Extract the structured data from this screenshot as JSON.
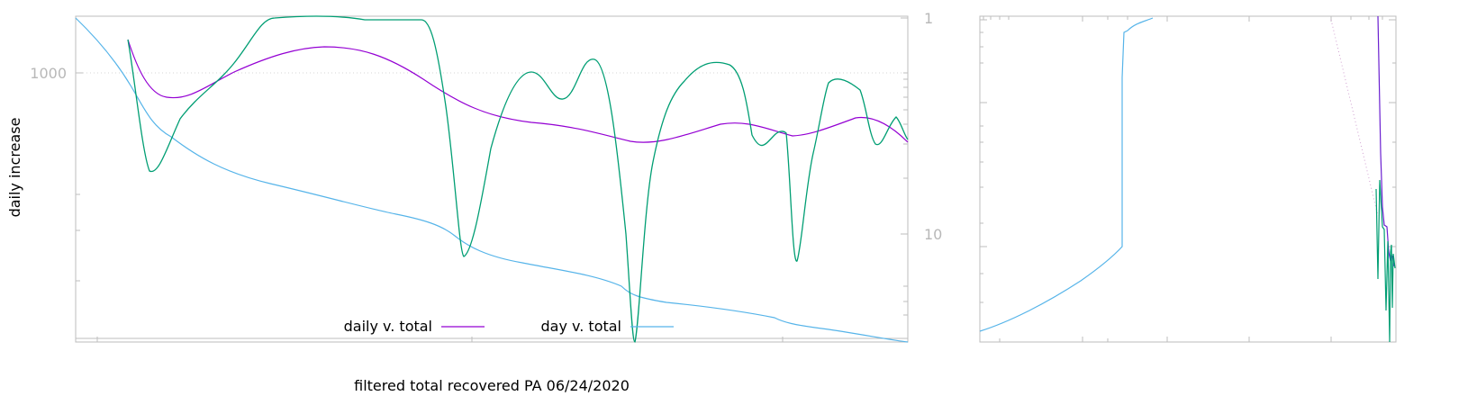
{
  "chart_data": [
    {
      "type": "line",
      "title": "",
      "xlabel": "filtered total recovered PA 06/24/2020",
      "ylabel": "daily increase",
      "yscale": "log",
      "y_tick_labels": [
        "1000"
      ],
      "y2_tick_labels": [
        "1",
        "10"
      ],
      "grid": true,
      "legend_position": "bottom-center",
      "series": [
        {
          "name": "daily v. total",
          "color": "#9400d3",
          "y": [
            1280,
            600,
            860,
            1230,
            1030,
            620,
            470,
            440,
            360,
            330,
            400,
            390,
            450,
            330
          ]
        },
        {
          "name": "day v. total",
          "color": "#56b4e9",
          "y": [
            2000,
            1500,
            830,
            270,
            180,
            150,
            100,
            90,
            78,
            70,
            58,
            54,
            52,
            50
          ]
        },
        {
          "name": "",
          "color": "#009e73",
          "y": [
            1240,
            330,
            810,
            1950,
            2000,
            1950,
            60,
            1000,
            1280,
            35,
            1240,
            1150,
            370,
            990,
            440,
            330
          ]
        }
      ]
    },
    {
      "type": "line",
      "title": "",
      "xscale": "log",
      "yscale": "log",
      "legend_position": "none"
    }
  ],
  "legend": {
    "daily_label": "daily v. total",
    "day_label": "day v. total"
  }
}
